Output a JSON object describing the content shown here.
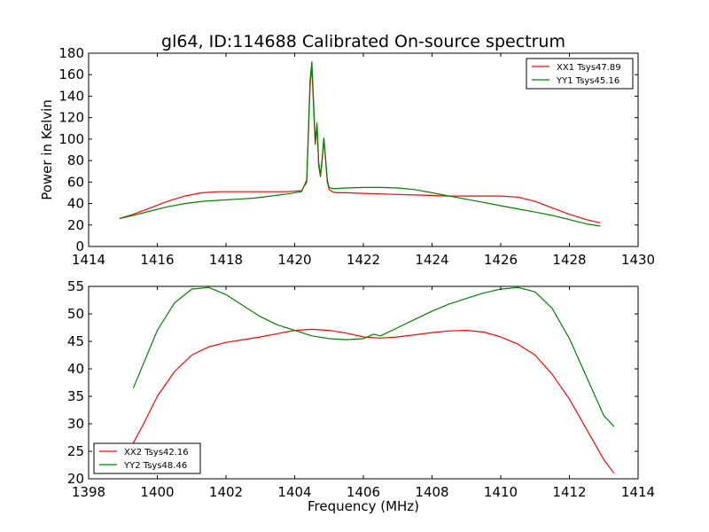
{
  "figure": {
    "title": "gl64, ID:114688 Calibrated On-source spectrum",
    "xlabel": "Frequency (MHz)",
    "ylabel_top": "Power in Kelvin"
  },
  "chart_data": [
    {
      "type": "line",
      "title": "gl64, ID:114688 Calibrated On-source spectrum",
      "xlabel": "",
      "ylabel": "Power in Kelvin",
      "xlim": [
        1414,
        1430
      ],
      "ylim": [
        0,
        180
      ],
      "xticks": [
        "1414",
        "1416",
        "1418",
        "1420",
        "1422",
        "1424",
        "1426",
        "1428",
        "1430"
      ],
      "yticks": [
        "0",
        "20",
        "40",
        "60",
        "80",
        "100",
        "120",
        "140",
        "160",
        "180"
      ],
      "grid": false,
      "legend_position": "top-right",
      "series": [
        {
          "name": "XX1 Tsys47.89",
          "color": "#ff0000",
          "x": [
            1414.9,
            1415.3,
            1415.8,
            1416.3,
            1416.8,
            1417.3,
            1417.8,
            1418.3,
            1418.8,
            1419.3,
            1419.8,
            1420.2,
            1420.35,
            1420.45,
            1420.5,
            1420.55,
            1420.6,
            1420.65,
            1420.7,
            1420.75,
            1420.8,
            1420.85,
            1420.9,
            1420.95,
            1421.0,
            1421.1,
            1421.2,
            1421.5,
            1422.0,
            1422.5,
            1423.0,
            1423.5,
            1424.0,
            1424.5,
            1425.0,
            1425.5,
            1426.0,
            1426.5,
            1427.0,
            1427.5,
            1428.0,
            1428.5,
            1428.9
          ],
          "y": [
            26,
            30,
            36,
            42,
            47,
            50,
            51,
            51,
            51,
            51,
            51,
            52,
            60,
            150,
            168,
            130,
            95,
            112,
            75,
            65,
            80,
            100,
            80,
            60,
            53,
            51,
            50,
            50,
            49.5,
            49,
            48.5,
            48,
            47.5,
            47,
            47,
            47,
            47,
            46,
            42,
            36,
            30,
            25,
            22
          ]
        },
        {
          "name": "YY1 Tsys45.16",
          "color": "#008000",
          "x": [
            1414.9,
            1415.3,
            1415.8,
            1416.3,
            1416.8,
            1417.3,
            1417.8,
            1418.3,
            1418.8,
            1419.3,
            1419.8,
            1420.2,
            1420.35,
            1420.45,
            1420.5,
            1420.55,
            1420.6,
            1420.65,
            1420.7,
            1420.75,
            1420.8,
            1420.85,
            1420.9,
            1420.95,
            1421.0,
            1421.1,
            1421.2,
            1421.5,
            1422.0,
            1422.5,
            1423.0,
            1423.5,
            1424.0,
            1424.5,
            1425.0,
            1425.5,
            1426.0,
            1426.5,
            1427.0,
            1427.5,
            1428.0,
            1428.5,
            1428.9
          ],
          "y": [
            26,
            29,
            33,
            37,
            40,
            42,
            43,
            44,
            45,
            47,
            49,
            51,
            62,
            155,
            172,
            135,
            98,
            115,
            78,
            66,
            82,
            101,
            82,
            62,
            55,
            54,
            54,
            54.5,
            55,
            55,
            54.5,
            53,
            50,
            47,
            44,
            41,
            38,
            35,
            32,
            29,
            25,
            21,
            19
          ]
        }
      ]
    },
    {
      "type": "line",
      "title": "",
      "xlabel": "Frequency (MHz)",
      "ylabel": "",
      "xlim": [
        1398,
        1414
      ],
      "ylim": [
        20,
        55
      ],
      "xticks": [
        "1398",
        "1400",
        "1402",
        "1404",
        "1406",
        "1408",
        "1410",
        "1412",
        "1414"
      ],
      "yticks": [
        "20",
        "25",
        "30",
        "35",
        "40",
        "45",
        "50",
        "55"
      ],
      "grid": false,
      "legend_position": "bottom-left",
      "series": [
        {
          "name": "XX2 Tsys42.16",
          "color": "#ff0000",
          "x": [
            1399.3,
            1399.6,
            1400.0,
            1400.5,
            1401.0,
            1401.5,
            1402.0,
            1402.5,
            1403.0,
            1403.5,
            1404.0,
            1404.5,
            1405.0,
            1405.5,
            1406.0,
            1406.5,
            1407.0,
            1407.5,
            1408.0,
            1408.5,
            1409.0,
            1409.5,
            1410.0,
            1410.5,
            1411.0,
            1411.5,
            1412.0,
            1412.5,
            1413.0,
            1413.3
          ],
          "y": [
            26.5,
            30,
            35,
            39.5,
            42.5,
            44,
            44.8,
            45.3,
            45.8,
            46.4,
            47,
            47.2,
            47,
            46.5,
            45.8,
            45.6,
            45.8,
            46.2,
            46.6,
            46.9,
            47,
            46.7,
            45.8,
            44.5,
            42.5,
            39,
            34.5,
            29,
            23.5,
            21
          ]
        },
        {
          "name": "YY2 Tsys48.46",
          "color": "#008000",
          "x": [
            1399.3,
            1399.6,
            1400.0,
            1400.5,
            1401.0,
            1401.5,
            1402.0,
            1402.5,
            1403.0,
            1403.5,
            1404.0,
            1404.5,
            1405.0,
            1405.5,
            1406.0,
            1406.3,
            1406.5,
            1407.0,
            1407.5,
            1408.0,
            1408.5,
            1409.0,
            1409.5,
            1410.0,
            1410.5,
            1411.0,
            1411.5,
            1412.0,
            1412.5,
            1413.0,
            1413.3
          ],
          "y": [
            36.5,
            41,
            47,
            52,
            54.5,
            54.8,
            53.5,
            51.5,
            49.5,
            48,
            47,
            46,
            45.5,
            45.3,
            45.5,
            46.3,
            46,
            47.5,
            49,
            50.5,
            51.8,
            52.8,
            53.8,
            54.5,
            54.8,
            54,
            51,
            45.5,
            38.5,
            31.5,
            29.5
          ]
        }
      ]
    }
  ]
}
